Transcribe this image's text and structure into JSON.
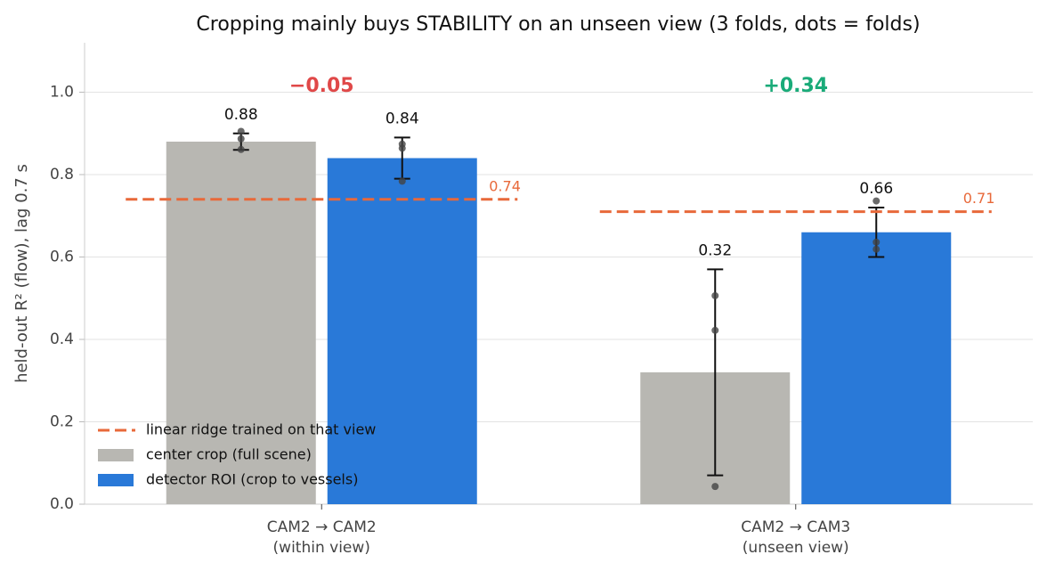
{
  "chart_data": {
    "type": "bar",
    "title": "Cropping mainly buys STABILITY on an unseen view (3 folds, dots = folds)",
    "ylabel": "held-out R² (flow), lag 0.7 s",
    "categories": [
      "CAM2 → CAM2",
      "CAM2 → CAM3"
    ],
    "category_subtitles": [
      "(within view)",
      "(unseen view)"
    ],
    "series": [
      {
        "name": "center crop (full scene)",
        "color": "#b8b7b2",
        "values": [
          0.88,
          0.32
        ],
        "errors": [
          0.02,
          0.25
        ],
        "folds": [
          [
            0.905,
            0.887,
            0.861
          ],
          [
            0.506,
            0.422,
            0.043
          ]
        ]
      },
      {
        "name": "detector ROI (crop to vessels)",
        "color": "#2979d8",
        "values": [
          0.84,
          0.66
        ],
        "errors": [
          0.05,
          0.06
        ],
        "folds": [
          [
            0.874,
            0.864,
            0.784
          ],
          [
            0.736,
            0.636,
            0.619
          ]
        ]
      }
    ],
    "baseline": {
      "name": "linear ridge trained on that view",
      "color": "#e8693a",
      "values": [
        0.74,
        0.71
      ]
    },
    "annotations": [
      {
        "text": "−0.05",
        "color": "#e04848"
      },
      {
        "text": "+0.34",
        "color": "#1aab79"
      }
    ],
    "ylim": [
      0,
      1.12
    ],
    "yticks": [
      {
        "value": 0,
        "label": "0.0"
      },
      0.2,
      0.4,
      0.6,
      0.8,
      {
        "value": 1,
        "label": "1.0"
      }
    ],
    "grid": true,
    "legend": "lower left"
  }
}
